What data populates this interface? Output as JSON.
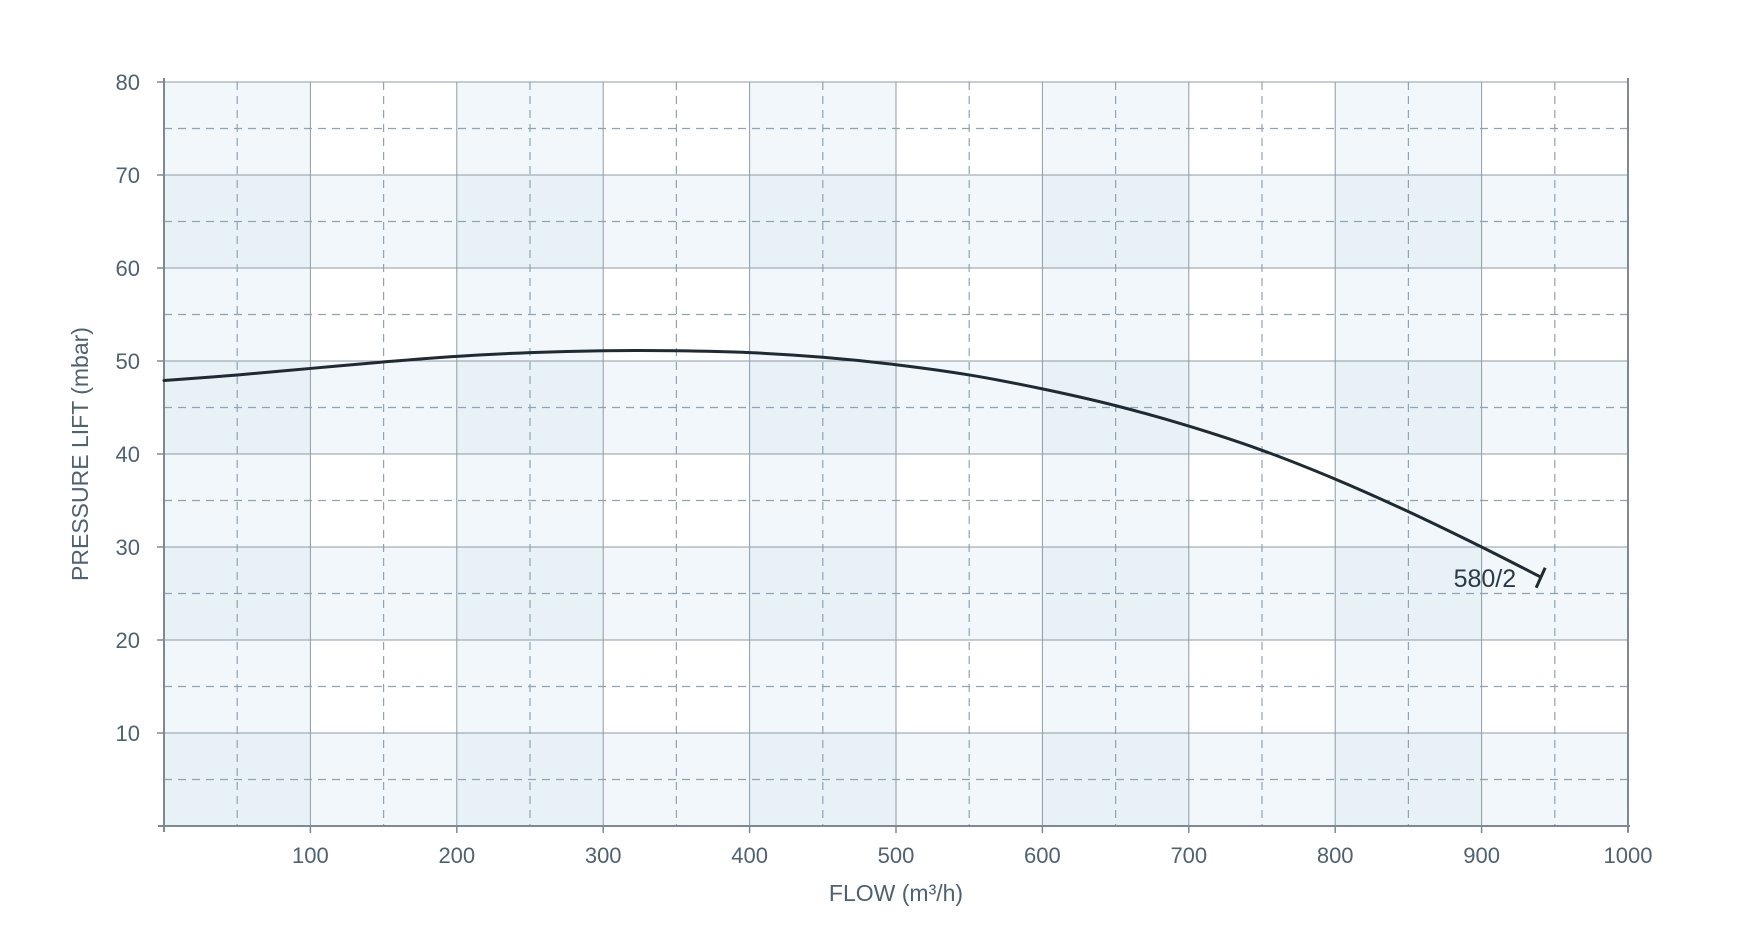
{
  "chart_data": {
    "type": "line",
    "title": "",
    "xlabel": "FLOW (m³/h)",
    "ylabel": "PRESSURE LIFT (mbar)",
    "xlim": [
      0,
      1000
    ],
    "ylim": [
      0,
      80
    ],
    "x_ticks": [
      100,
      200,
      300,
      400,
      500,
      600,
      700,
      800,
      900,
      1000
    ],
    "y_ticks": [
      10,
      20,
      30,
      40,
      50,
      60,
      70,
      80
    ],
    "grid": true,
    "grid_minor": true,
    "series": [
      {
        "name": "580/2",
        "x": [
          0,
          50,
          100,
          150,
          200,
          250,
          300,
          350,
          400,
          450,
          500,
          550,
          600,
          650,
          700,
          750,
          800,
          850,
          900,
          940
        ],
        "y": [
          47.9,
          48.5,
          49.2,
          49.9,
          50.5,
          50.9,
          51.1,
          51.1,
          50.9,
          50.4,
          49.6,
          48.5,
          47.0,
          45.2,
          43.0,
          40.4,
          37.3,
          33.8,
          30.0,
          26.8
        ]
      }
    ],
    "colors": {
      "line": "#1f2a33",
      "axis": "#7d8a95",
      "grid_major": "#8f9ba5",
      "grid_minor": "#8fa3b3",
      "band_light": "#f1f7fa",
      "band_mid": "#e7f1f6",
      "tick_text": "#4f6272"
    }
  }
}
